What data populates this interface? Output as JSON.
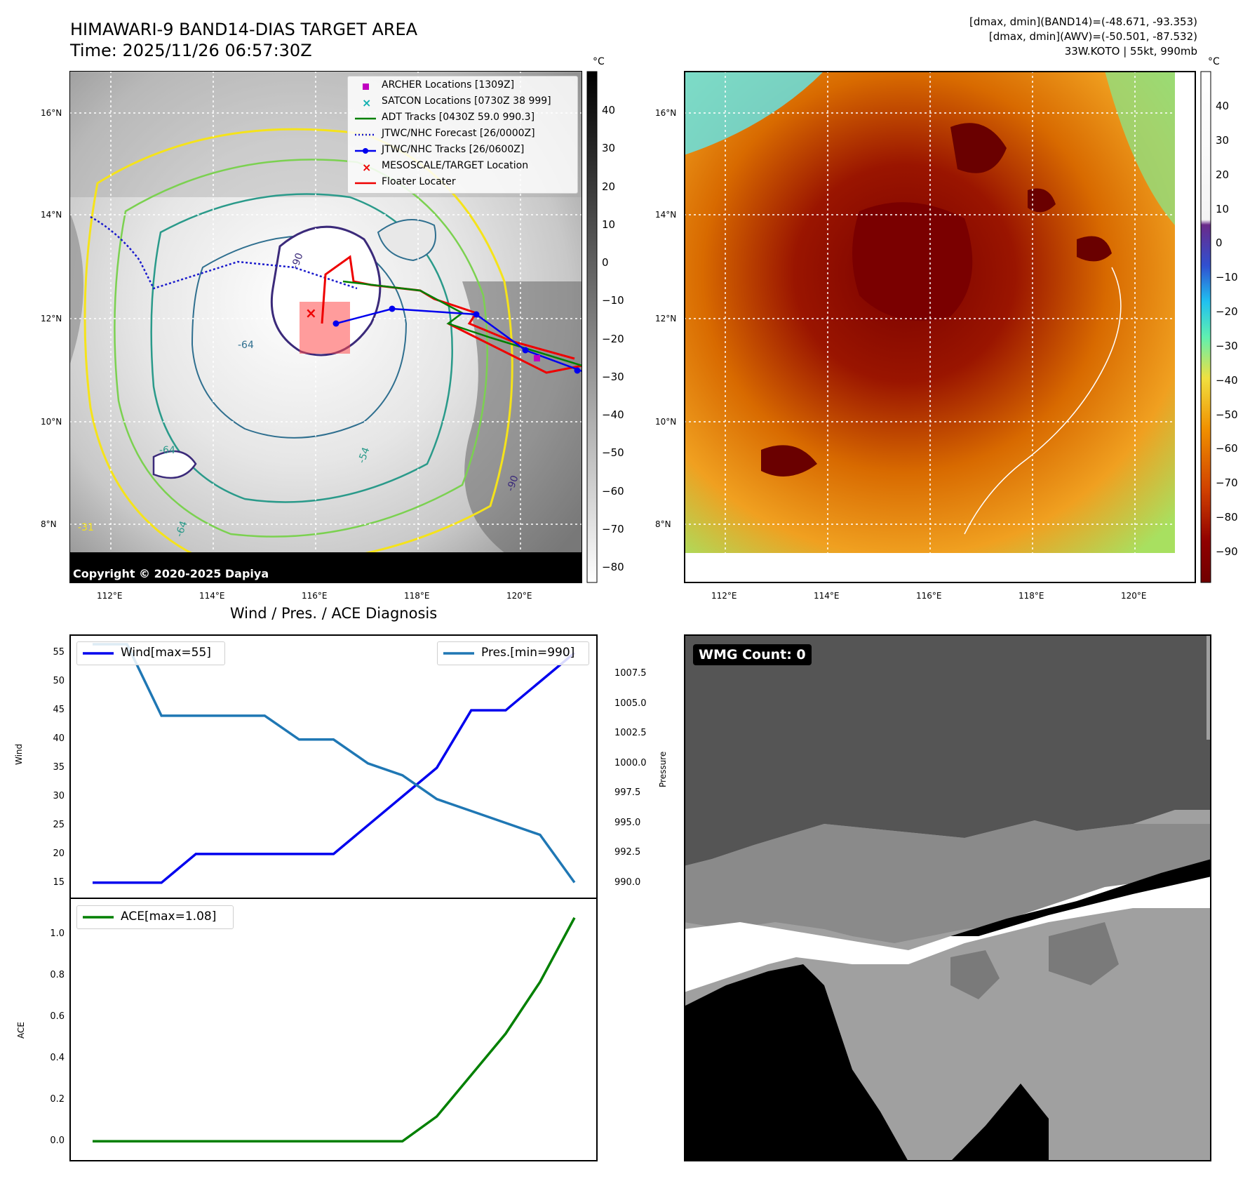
{
  "header": {
    "title_line1": "HIMAWARI-9 BAND14-DIAS TARGET AREA",
    "title_line2": "Time: 2025/11/26 06:57:30Z",
    "info_line1": "[dmax, dmin](BAND14)=(-48.671, -93.353)",
    "info_line2": "[dmax, dmin](AWV)=(-50.501, -87.532)",
    "info_line3": "33W.KOTO | 55kt, 990mb"
  },
  "map": {
    "lat_ticks": [
      "16°N",
      "14°N",
      "12°N",
      "10°N",
      "8°N"
    ],
    "lon_ticks": [
      "112°E",
      "114°E",
      "116°E",
      "118°E",
      "120°E"
    ],
    "copyright": "Copyright © 2020-2025 Dapiya",
    "contour_labels": [
      "-90",
      "-64",
      "-64",
      "-54",
      "-31",
      "-64",
      "-90"
    ],
    "legend": [
      {
        "label": "ARCHER Locations [1309Z]",
        "color": "#c000c0"
      },
      {
        "label": "SATCON Locations [0730Z 38 999]",
        "color": "#10b0b0"
      },
      {
        "label": "ADT Tracks [0430Z 59.0 990.3]",
        "color": "#008000"
      },
      {
        "label": "JTWC/NHC Forecast [26/0000Z]",
        "color": "#1a1acc"
      },
      {
        "label": "JTWC/NHC Tracks [26/0600Z]",
        "color": "#0000ee"
      },
      {
        "label": "MESOSCALE/TARGET Location",
        "color": "#ee0000"
      },
      {
        "label": "Floater Locater",
        "color": "#ee0000"
      }
    ]
  },
  "colorbar_left": {
    "unit": "°C",
    "ticks": [
      "40",
      "30",
      "20",
      "10",
      "0",
      "−10",
      "−20",
      "−30",
      "−40",
      "−50",
      "−60",
      "−70",
      "−80"
    ]
  },
  "colorbar_right": {
    "unit": "°C",
    "ticks": [
      "40",
      "30",
      "20",
      "10",
      "0",
      "−10",
      "−20",
      "−30",
      "−40",
      "−50",
      "−60",
      "−70",
      "−80",
      "−90"
    ]
  },
  "wmg": {
    "label": "WMG Count: 0"
  },
  "colors": {
    "wind": "#0000ee",
    "pressure": "#1f77b4",
    "ace": "#008000"
  },
  "chart_data": [
    {
      "type": "line",
      "title": "Wind / Pres. / ACE Diagnosis",
      "x": [
        0,
        1,
        2,
        3,
        4,
        5,
        6,
        7,
        8,
        9,
        10,
        11,
        12,
        13,
        14
      ],
      "series": [
        {
          "name": "Wind[max=55]",
          "axis": "left",
          "values": [
            15,
            15,
            15,
            20,
            20,
            20,
            20,
            20,
            25,
            30,
            35,
            45,
            45,
            50,
            55
          ]
        },
        {
          "name": "Pres.[min=990]",
          "axis": "right",
          "values": [
            1010,
            1010,
            1004,
            1004,
            1004,
            1004,
            1002,
            1002,
            1000,
            999,
            997,
            996,
            995,
            994,
            990
          ]
        }
      ],
      "ylabel": "Wind",
      "y2label": "Pressure",
      "ylim": [
        14,
        56.5
      ],
      "y2lim": [
        989.5,
        1010
      ],
      "yticks": [
        "55",
        "50",
        "45",
        "40",
        "35",
        "30",
        "25",
        "20",
        "15"
      ],
      "y2ticks": [
        "1007.5",
        "1005.0",
        "1002.5",
        "1000.0",
        "997.5",
        "995.0",
        "992.5",
        "990.0"
      ]
    },
    {
      "type": "line",
      "series": [
        {
          "name": "ACE[max=1.08]",
          "values": [
            0,
            0,
            0,
            0,
            0,
            0,
            0,
            0,
            0,
            0,
            0.12,
            0.32,
            0.52,
            0.77,
            1.08
          ]
        }
      ],
      "ylabel": "ACE",
      "ylim": [
        -0.05,
        1.13
      ],
      "yticks": [
        "1.0",
        "0.8",
        "0.6",
        "0.4",
        "0.2",
        "0.0"
      ]
    }
  ]
}
